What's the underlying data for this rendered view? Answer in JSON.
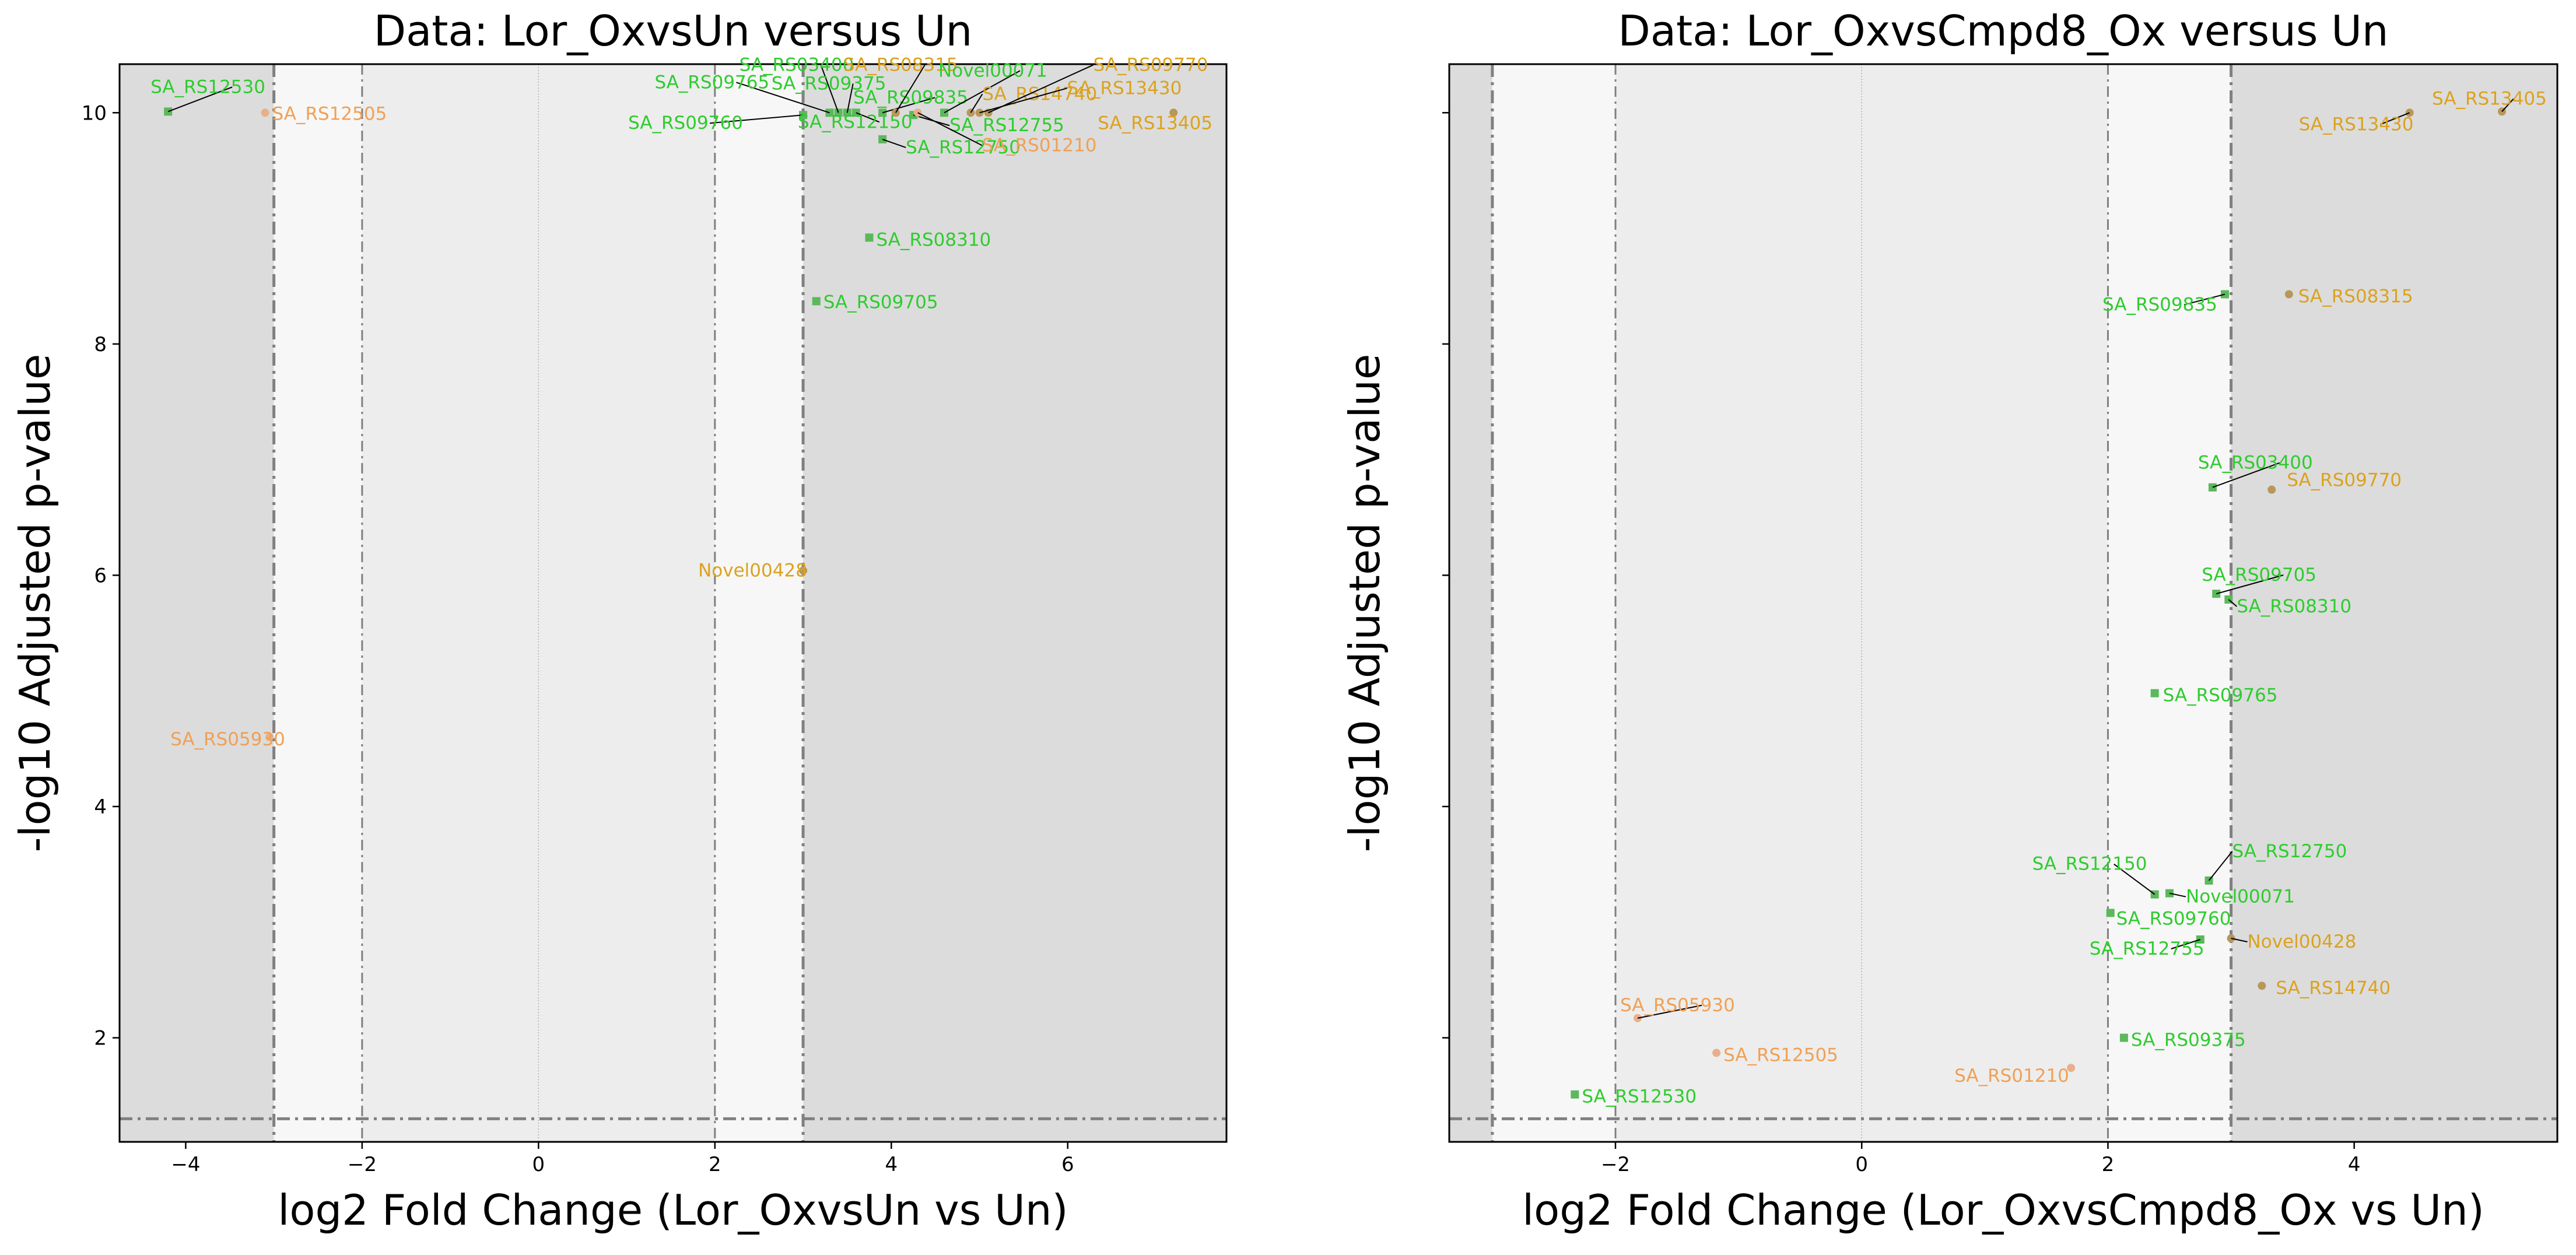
{
  "chart_data": [
    {
      "type": "scatter",
      "title": "Data: Lor_OxvsUn versus Un",
      "xlabel": "log2 Fold Change (Lor_OxvsUn vs Un)",
      "ylabel": "-log10 Adjusted p-value",
      "xlim": [
        -4.75,
        7.8
      ],
      "ylim": [
        1.1,
        10.42
      ],
      "xticks": [
        "−4",
        "−2",
        "0",
        "2",
        "4",
        "6"
      ],
      "xtick_values": [
        -4,
        -2,
        0,
        2,
        4,
        6
      ],
      "yticks": [
        "2",
        "4",
        "6",
        "8",
        "10"
      ],
      "ytick_values": [
        2,
        4,
        6,
        8,
        10
      ],
      "thresholds": {
        "fc_inner": [
          -2,
          2
        ],
        "fc_outer": [
          -3,
          3
        ],
        "p_line": 1.3
      },
      "grid": false,
      "points": [
        {
          "label": "SA_RS12530",
          "x": -4.2,
          "y": 10.01,
          "group": "green"
        },
        {
          "label": "SA_RS12505",
          "x": -3.1,
          "y": 10.0,
          "group": "light-orange"
        },
        {
          "label": "SA_RS03400",
          "x": 3.4,
          "y": 10.0,
          "group": "green"
        },
        {
          "label": "SA_RS09765",
          "x": 3.3,
          "y": 10.0,
          "group": "green"
        },
        {
          "label": "SA_RS09375",
          "x": 3.5,
          "y": 10.0,
          "group": "green"
        },
        {
          "label": "SA_RS09760",
          "x": 3.0,
          "y": 9.98,
          "group": "green"
        },
        {
          "label": "SA_RS12150",
          "x": 3.6,
          "y": 10.0,
          "group": "green"
        },
        {
          "label": "SA_RS09835",
          "x": 3.9,
          "y": 10.0,
          "group": "green"
        },
        {
          "label": "SA_RS08315",
          "x": 4.05,
          "y": 10.0,
          "group": "gold"
        },
        {
          "label": "SA_RS12755",
          "x": 4.25,
          "y": 9.98,
          "group": "green"
        },
        {
          "label": "SA_RS12750",
          "x": 3.9,
          "y": 9.77,
          "group": "green"
        },
        {
          "label": "Novel00071",
          "x": 4.6,
          "y": 10.0,
          "group": "green"
        },
        {
          "label": "SA_RS14740",
          "x": 4.9,
          "y": 10.0,
          "group": "gold"
        },
        {
          "label": "SA_RS09770",
          "x": 5.1,
          "y": 10.0,
          "group": "gold"
        },
        {
          "label": "SA_RS13430",
          "x": 5.0,
          "y": 10.0,
          "group": "gold"
        },
        {
          "label": "SA_RS13405",
          "x": 7.2,
          "y": 10.0,
          "group": "gold"
        },
        {
          "label": "SA_RS01210",
          "x": 4.3,
          "y": 10.0,
          "group": "light-orange"
        },
        {
          "label": "SA_RS08310",
          "x": 3.75,
          "y": 8.92,
          "group": "green"
        },
        {
          "label": "SA_RS09705",
          "x": 3.15,
          "y": 8.37,
          "group": "green"
        },
        {
          "label": "Novel00428",
          "x": 3.0,
          "y": 6.04,
          "group": "gold"
        },
        {
          "label": "SA_RS05930",
          "x": -3.05,
          "y": 4.6,
          "group": "light-orange"
        }
      ]
    },
    {
      "type": "scatter",
      "title": "Data: Lor_OxvsCmpd8_Ox versus Un",
      "xlabel": "log2 Fold Change (Lor_OxvsCmpd8_Ox vs Un)",
      "ylabel": "-log10 Adjusted p-value",
      "xlim": [
        -3.35,
        5.65
      ],
      "ylim": [
        1.1,
        10.42
      ],
      "xticks": [
        "−2",
        "0",
        "2",
        "4"
      ],
      "xtick_values": [
        -2,
        0,
        2,
        4
      ],
      "yticks": [
        "",
        "",
        "",
        "",
        ""
      ],
      "ytick_values": [
        2,
        4,
        6,
        8,
        10
      ],
      "thresholds": {
        "fc_inner": [
          -2,
          2
        ],
        "fc_outer": [
          -3,
          3
        ],
        "p_line": 1.3
      },
      "grid": false,
      "points": [
        {
          "label": "SA_RS13405",
          "x": 5.2,
          "y": 10.01,
          "group": "gold"
        },
        {
          "label": "SA_RS13430",
          "x": 4.45,
          "y": 10.0,
          "group": "gold"
        },
        {
          "label": "SA_RS09835",
          "x": 2.95,
          "y": 8.43,
          "group": "green"
        },
        {
          "label": "SA_RS08315",
          "x": 3.47,
          "y": 8.43,
          "group": "gold"
        },
        {
          "label": "SA_RS03400",
          "x": 2.85,
          "y": 6.76,
          "group": "green"
        },
        {
          "label": "SA_RS09770",
          "x": 3.33,
          "y": 6.74,
          "group": "gold"
        },
        {
          "label": "SA_RS09705",
          "x": 2.88,
          "y": 5.84,
          "group": "green"
        },
        {
          "label": "SA_RS08310",
          "x": 2.98,
          "y": 5.79,
          "group": "green"
        },
        {
          "label": "SA_RS09765",
          "x": 2.38,
          "y": 4.98,
          "group": "green"
        },
        {
          "label": "SA_RS12750",
          "x": 2.82,
          "y": 3.36,
          "group": "green"
        },
        {
          "label": "SA_RS12150",
          "x": 2.38,
          "y": 3.24,
          "group": "green"
        },
        {
          "label": "Novel00071",
          "x": 2.5,
          "y": 3.25,
          "group": "green"
        },
        {
          "label": "SA_RS09760",
          "x": 2.02,
          "y": 3.08,
          "group": "green"
        },
        {
          "label": "SA_RS12755",
          "x": 2.75,
          "y": 2.85,
          "group": "green"
        },
        {
          "label": "Novel00428",
          "x": 3.0,
          "y": 2.86,
          "group": "gold"
        },
        {
          "label": "SA_RS14740",
          "x": 3.25,
          "y": 2.45,
          "group": "gold"
        },
        {
          "label": "SA_RS05930",
          "x": -1.82,
          "y": 2.17,
          "group": "light-orange"
        },
        {
          "label": "SA_RS12505",
          "x": -1.18,
          "y": 1.87,
          "group": "light-orange"
        },
        {
          "label": "SA_RS09375",
          "x": 2.13,
          "y": 2.0,
          "group": "green"
        },
        {
          "label": "SA_RS01210",
          "x": 1.7,
          "y": 1.74,
          "group": "light-orange"
        },
        {
          "label": "SA_RS12530",
          "x": -2.33,
          "y": 1.51,
          "group": "green"
        }
      ]
    }
  ],
  "colors": {
    "green": "#2ecc2e",
    "green_marker": "#5cb85c",
    "gold": "#dba21f",
    "gold_marker": "#b8975a",
    "light-orange": "#f0a055",
    "light-orange_marker": "#e8b08a",
    "zone_outer": "#dcdcdc",
    "zone_mid": "#f7f7f7",
    "zone_inner": "#ededed",
    "threshold_line": "#808080"
  }
}
